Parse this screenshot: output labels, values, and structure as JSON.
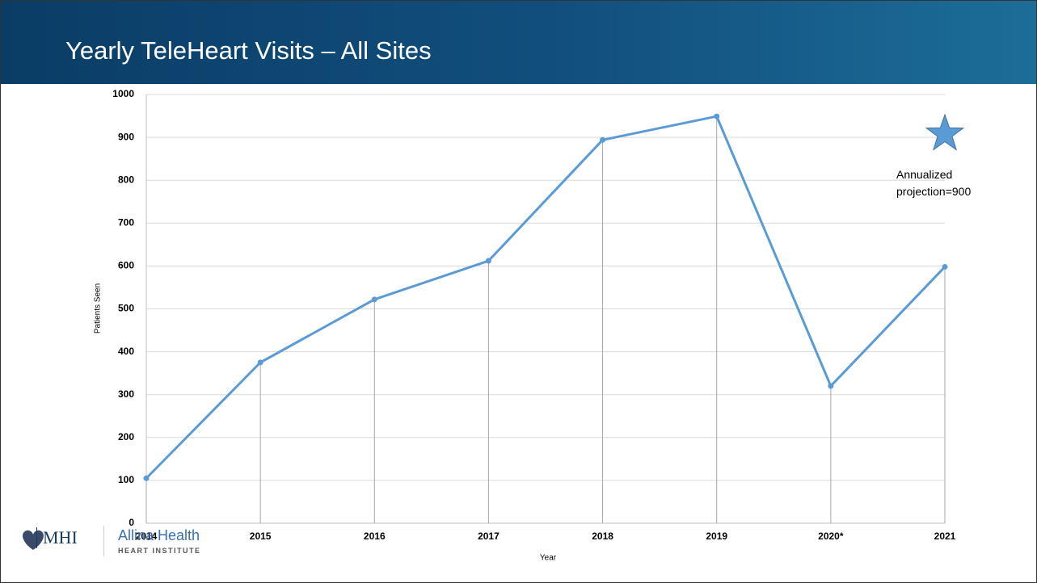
{
  "chart_data": {
    "type": "line",
    "title": "Yearly TeleHeart Visits – All Sites",
    "x_label": "Year",
    "y_label": "Patients Seen",
    "categories": [
      "2014",
      "2015",
      "2016",
      "2017",
      "2018",
      "2019",
      "2020*",
      "2021"
    ],
    "series": [
      {
        "name": "Patients Seen",
        "color": "#5b9bd5",
        "values": [
          105,
          375,
          522,
          612,
          894,
          949,
          320,
          598
        ]
      }
    ],
    "ylim": [
      0,
      1000
    ],
    "yticks": [
      0,
      100,
      200,
      300,
      400,
      500,
      600,
      700,
      800,
      900,
      1000
    ],
    "grid": true,
    "drop_lines": true,
    "annotation": {
      "text": "Annualized projection=900",
      "marker": "star",
      "color": "#5b9bd5"
    }
  },
  "footer": {
    "logo_left": "MHI",
    "logo_right": "Allina Health",
    "logo_right_sub": "HEART INSTITUTE"
  }
}
